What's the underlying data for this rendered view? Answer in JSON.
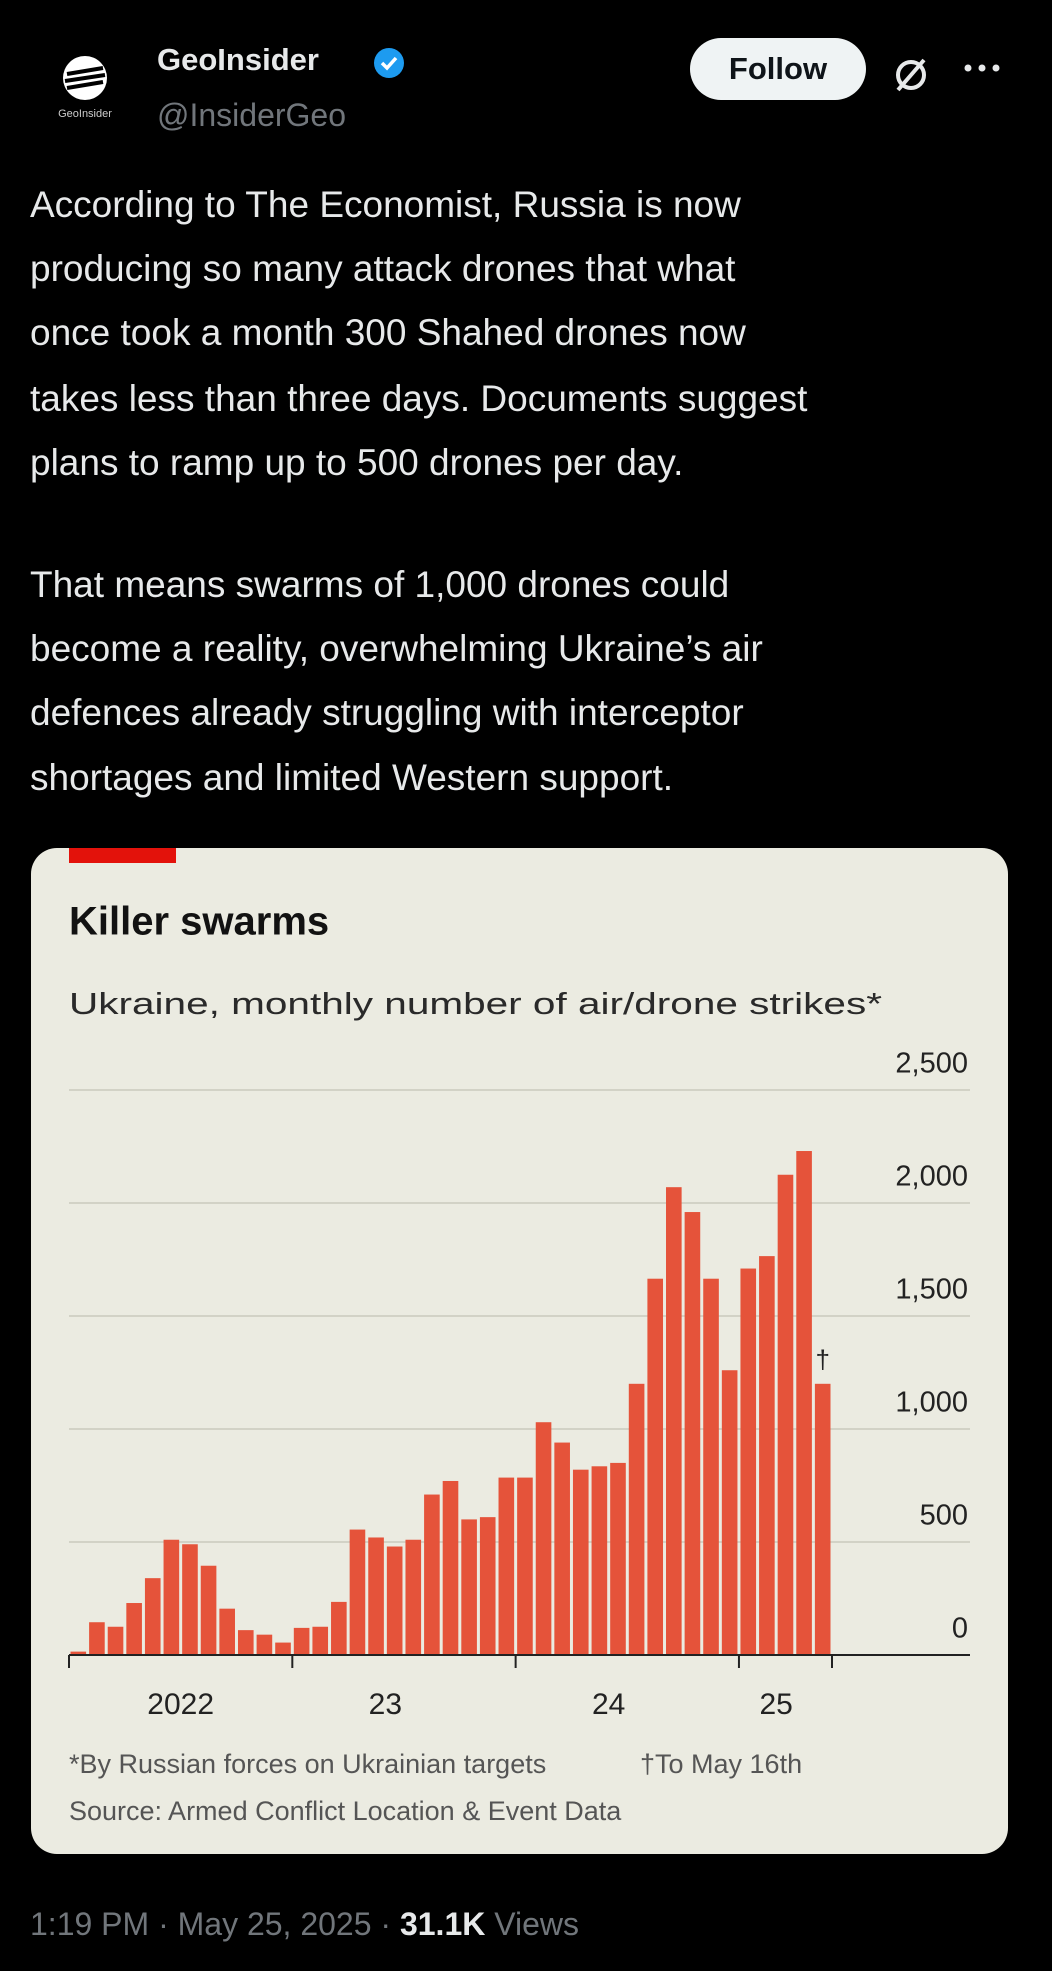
{
  "tweet": {
    "avatar_label": "GeoInsider",
    "name": "GeoInsider",
    "handle": "@InsiderGeo",
    "follow": "Follow",
    "text": [
      [
        "According to The Economist, Russia is now",
        "producing so many attack drones that what",
        "once took a month 300 Shahed drones now",
        "takes less than three days. Documents suggest",
        "plans to ramp up to 500 drones per day."
      ],
      [
        "That means swarms of 1,000 drones could",
        "become a reality, overwhelming Ukraine’s air",
        "defences already struggling with interceptor",
        "shortages and limited Western support."
      ]
    ],
    "time": "1:19 PM",
    "separator": "·",
    "date": "May 25, 2025",
    "views_count": "31.1K",
    "views_label": "Views"
  },
  "chart_data": {
    "type": "bar",
    "title": "Killer swarms",
    "subtitle": "Ukraine, monthly number of air/drone strikes*",
    "categories": [
      null,
      null,
      null,
      null,
      null,
      "2022",
      null,
      null,
      null,
      null,
      null,
      null,
      null,
      null,
      null,
      null,
      "23",
      null,
      null,
      null,
      null,
      null,
      null,
      null,
      null,
      null,
      null,
      null,
      "24",
      null,
      null,
      null,
      null,
      null,
      null,
      null,
      null,
      "25",
      null,
      null,
      null
    ],
    "values": [
      15,
      145,
      125,
      230,
      340,
      510,
      490,
      395,
      205,
      110,
      90,
      55,
      120,
      125,
      235,
      555,
      520,
      480,
      510,
      710,
      770,
      600,
      610,
      785,
      785,
      1030,
      940,
      820,
      835,
      850,
      1200,
      1665,
      2070,
      1960,
      1665,
      1260,
      1710,
      1765,
      2125,
      2230,
      1200
    ],
    "color": "#e5533a",
    "ylim": [
      0,
      2500
    ],
    "yticks": [
      0,
      500,
      {
        "value": 1000,
        "label": "1,000"
      },
      {
        "value": 1500,
        "label": "1,500"
      },
      {
        "value": 2000,
        "label": "2,000"
      },
      {
        "value": 2500,
        "label": "2,500"
      }
    ],
    "grid": true,
    "last_bar_note": "†",
    "footnotes": [
      "*By Russian forces on Ukrainian targets",
      "†To May 16th"
    ],
    "source": "Source: Armed Conflict Location & Event Data"
  }
}
